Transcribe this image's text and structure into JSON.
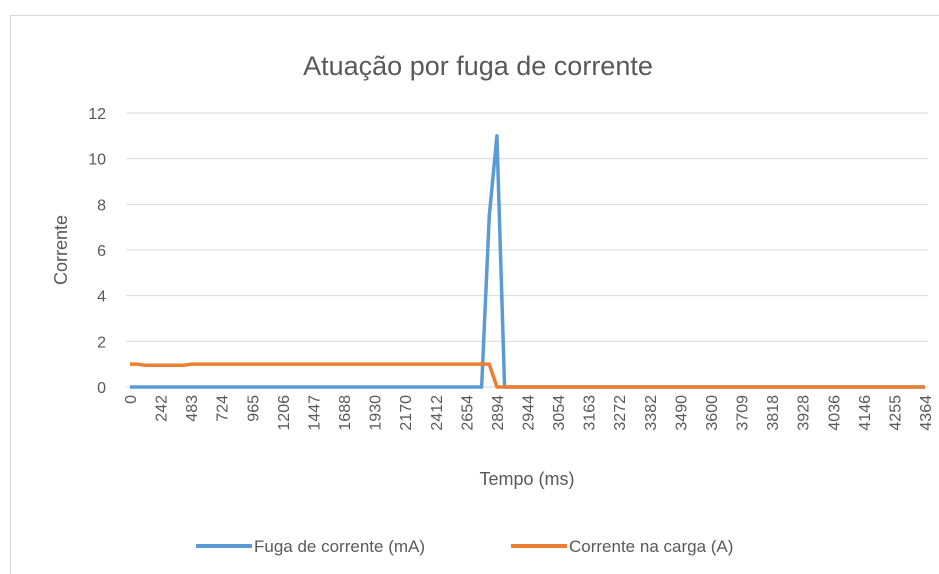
{
  "chart_data": {
    "type": "line",
    "title": "Atuação por fuga de corrente",
    "x_label": "Tempo (ms)",
    "y_label": "Corrente",
    "categories": [
      "0",
      null,
      null,
      null,
      "242",
      null,
      null,
      null,
      "483",
      null,
      null,
      null,
      "724",
      null,
      null,
      null,
      "965",
      null,
      null,
      null,
      "1206",
      null,
      null,
      null,
      "1447",
      null,
      null,
      null,
      "1688",
      null,
      null,
      null,
      "1930",
      null,
      null,
      null,
      "2170",
      null,
      null,
      null,
      "2412",
      null,
      null,
      null,
      "2654",
      null,
      null,
      null,
      "2894",
      null,
      null,
      null,
      "2944",
      null,
      null,
      null,
      "3054",
      null,
      null,
      null,
      "3163",
      null,
      null,
      null,
      "3272",
      null,
      null,
      null,
      "3382",
      null,
      null,
      null,
      "3490",
      null,
      null,
      null,
      "3600",
      null,
      null,
      null,
      "3709",
      null,
      null,
      null,
      "3818",
      null,
      null,
      null,
      "3928",
      null,
      null,
      null,
      "4036",
      null,
      null,
      null,
      "4146",
      null,
      null,
      null,
      "4255",
      null,
      null,
      null,
      "4364"
    ],
    "series": [
      {
        "name": "Fuga de corrente (mA)",
        "color": "#5b9bd5",
        "values": [
          0,
          0,
          0,
          0,
          0,
          0,
          0,
          0,
          0,
          0,
          0,
          0,
          0,
          0,
          0,
          0,
          0,
          0,
          0,
          0,
          0,
          0,
          0,
          0,
          0,
          0,
          0,
          0,
          0,
          0,
          0,
          0,
          0,
          0,
          0,
          0,
          0,
          0,
          0,
          0,
          0,
          0,
          0,
          0,
          0,
          0,
          0,
          7.5,
          11,
          0,
          0,
          0,
          0,
          0,
          0,
          0,
          0,
          0,
          0,
          0,
          0,
          0,
          0,
          0,
          0,
          0,
          0,
          0,
          0,
          0,
          0,
          0,
          0,
          0,
          0,
          0,
          0,
          0,
          0,
          0,
          0,
          0,
          0,
          0,
          0,
          0,
          0,
          0,
          0,
          0,
          0,
          0,
          0,
          0,
          0,
          0,
          0,
          0,
          0,
          0,
          0,
          0,
          0,
          0,
          0
        ]
      },
      {
        "name": "Corrente na carga (A)",
        "color": "#ed7d31",
        "values": [
          1,
          1,
          0.95,
          0.95,
          0.95,
          0.95,
          0.95,
          0.95,
          1,
          1,
          1,
          1,
          1,
          1,
          1,
          1,
          1,
          1,
          1,
          1,
          1,
          1,
          1,
          1,
          1,
          1,
          1,
          1,
          1,
          1,
          1,
          1,
          1,
          1,
          1,
          1,
          1,
          1,
          1,
          1,
          1,
          1,
          1,
          1,
          1,
          1,
          1,
          1,
          0,
          0,
          0,
          0,
          0,
          0,
          0,
          0,
          0,
          0,
          0,
          0,
          0,
          0,
          0,
          0,
          0,
          0,
          0,
          0,
          0,
          0,
          0,
          0,
          0,
          0,
          0,
          0,
          0,
          0,
          0,
          0,
          0,
          0,
          0,
          0,
          0,
          0,
          0,
          0,
          0,
          0,
          0,
          0,
          0,
          0,
          0,
          0,
          0,
          0,
          0,
          0,
          0,
          0,
          0,
          0,
          0
        ]
      }
    ],
    "ylim": [
      0,
      12
    ],
    "yticks": [
      0,
      2,
      4,
      6,
      8,
      10,
      12
    ],
    "grid": true,
    "legend": "bottom"
  }
}
